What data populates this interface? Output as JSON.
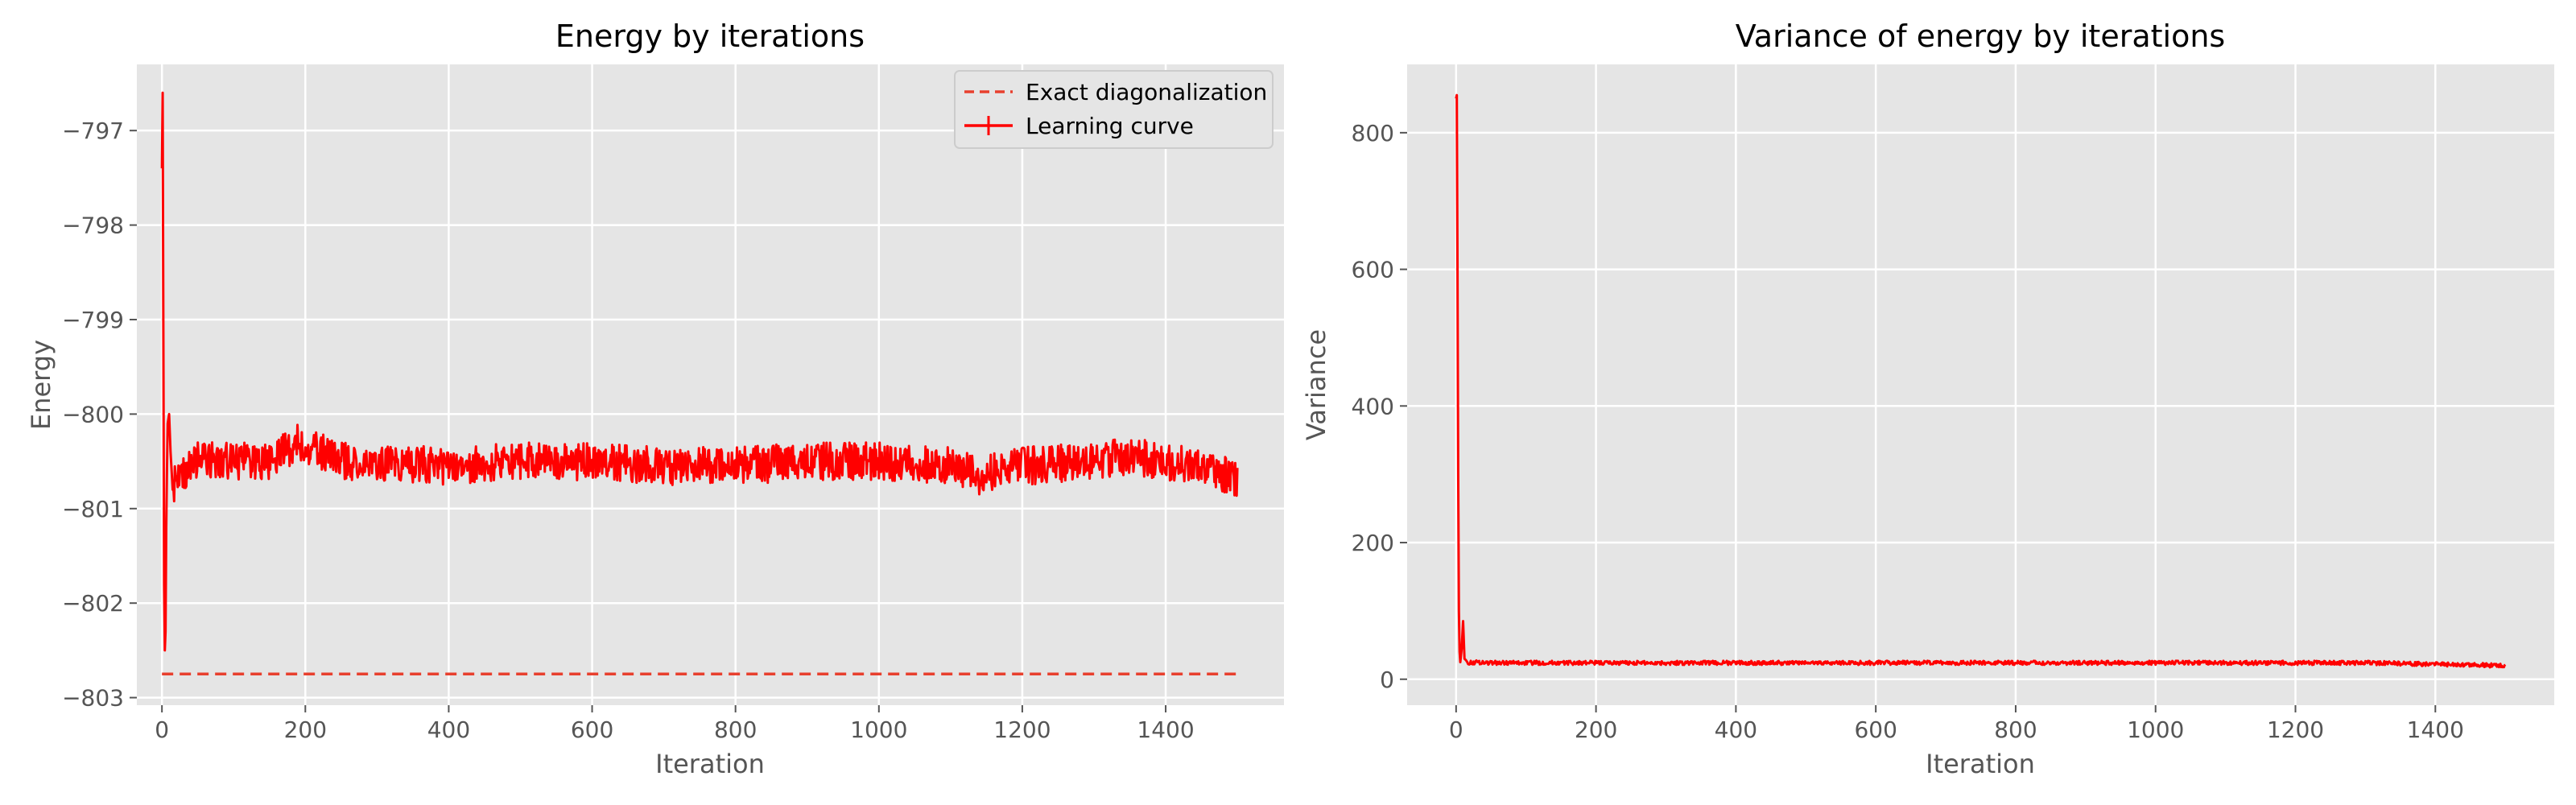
{
  "colors": {
    "plot_background": "#e5e5e5",
    "grid": "#ffffff",
    "learning_curve": "#ff0000",
    "exact_line": "#e8402e",
    "tick_text": "#555555",
    "title_text": "#000000"
  },
  "chart_data": [
    {
      "type": "line",
      "title": "Energy by iterations",
      "xlabel": "Iteration",
      "ylabel": "Energy",
      "xlim": [
        -35,
        1565
      ],
      "ylim": [
        -803.08,
        -796.3
      ],
      "xticks": [
        0,
        200,
        400,
        600,
        800,
        1000,
        1200,
        1400
      ],
      "xtick_labels": [
        "0",
        "200",
        "400",
        "600",
        "800",
        "1000",
        "1200",
        "1400"
      ],
      "yticks": [
        -803,
        -802,
        -801,
        -800,
        -799,
        -798,
        -797
      ],
      "ytick_labels": [
        "−803",
        "−802",
        "−801",
        "−800",
        "−799",
        "−798",
        "−797"
      ],
      "grid": true,
      "legend": {
        "placement": "top-right",
        "entries": [
          "Exact diagonalization",
          "Learning curve"
        ]
      },
      "series": [
        {
          "name": "Exact diagonalization",
          "style": "dashed",
          "x": [
            0,
            1500
          ],
          "y": [
            -802.75,
            -802.75
          ]
        },
        {
          "name": "Learning curve",
          "style": "solid-noisy",
          "x": [
            0,
            1,
            2,
            3,
            4,
            5,
            6,
            7,
            8,
            10,
            12,
            15,
            20,
            30,
            50,
            100,
            150,
            190,
            250,
            300,
            400,
            500,
            600,
            700,
            800,
            900,
            1000,
            1100,
            1140,
            1200,
            1300,
            1350,
            1400,
            1450,
            1500
          ],
          "y": [
            -797.4,
            -796.6,
            -799.2,
            -801.8,
            -802.5,
            -802.3,
            -801.2,
            -800.6,
            -800.1,
            -800.0,
            -800.4,
            -800.8,
            -800.7,
            -800.6,
            -800.5,
            -800.5,
            -800.5,
            -800.3,
            -800.5,
            -800.5,
            -800.55,
            -800.5,
            -800.5,
            -800.55,
            -800.55,
            -800.5,
            -800.5,
            -800.55,
            -800.65,
            -800.55,
            -800.5,
            -800.45,
            -800.5,
            -800.55,
            -800.7
          ],
          "band": 0.2
        }
      ]
    },
    {
      "type": "line",
      "title": "Variance of energy by iterations",
      "xlabel": "Iteration",
      "ylabel": "Variance",
      "xlim": [
        -70,
        1570
      ],
      "ylim": [
        -38,
        900
      ],
      "xticks": [
        0,
        200,
        400,
        600,
        800,
        1000,
        1200,
        1400
      ],
      "xtick_labels": [
        "0",
        "200",
        "400",
        "600",
        "800",
        "1000",
        "1200",
        "1400"
      ],
      "yticks": [
        0,
        200,
        400,
        600,
        800
      ],
      "ytick_labels": [
        "0",
        "200",
        "400",
        "600",
        "800"
      ],
      "grid": true,
      "series": [
        {
          "name": "",
          "style": "solid-noisy",
          "x": [
            0,
            1,
            2,
            3,
            4,
            5,
            6,
            8,
            10,
            12,
            14,
            16,
            20,
            30,
            50,
            100,
            200,
            300,
            500,
            700,
            900,
            1100,
            1300,
            1500
          ],
          "y": [
            850,
            855,
            600,
            300,
            100,
            40,
            25,
            45,
            85,
            30,
            28,
            25,
            24,
            25,
            24,
            24,
            24,
            24,
            24,
            24,
            24,
            24,
            24,
            20
          ],
          "band": 3
        }
      ]
    }
  ]
}
